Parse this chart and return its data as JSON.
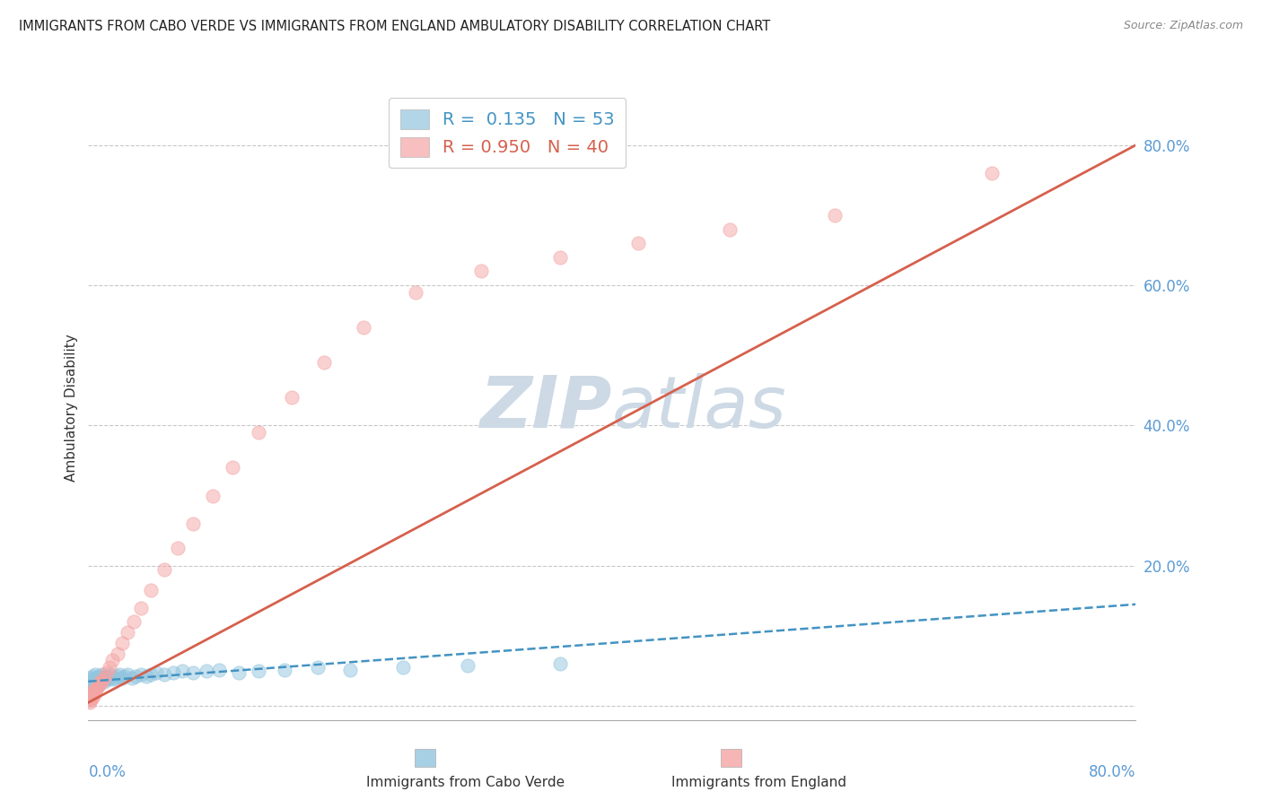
{
  "title": "IMMIGRANTS FROM CABO VERDE VS IMMIGRANTS FROM ENGLAND AMBULATORY DISABILITY CORRELATION CHART",
  "source": "Source: ZipAtlas.com",
  "ylabel": "Ambulatory Disability",
  "xlim": [
    0.0,
    0.8
  ],
  "ylim": [
    -0.02,
    0.87
  ],
  "yticks": [
    0.0,
    0.2,
    0.4,
    0.6,
    0.8
  ],
  "cabo_verde_R": 0.135,
  "cabo_verde_N": 53,
  "england_R": 0.95,
  "england_N": 40,
  "cabo_verde_color": "#92c5de",
  "england_color": "#f4a4a4",
  "cabo_verde_line_color": "#4393c3",
  "england_line_color": "#d6604d",
  "background_color": "#ffffff",
  "watermark_color": "#cdd9e5",
  "cabo_verde_scatter_x": [
    0.001,
    0.002,
    0.002,
    0.003,
    0.003,
    0.004,
    0.004,
    0.005,
    0.005,
    0.006,
    0.006,
    0.007,
    0.007,
    0.008,
    0.008,
    0.009,
    0.01,
    0.01,
    0.011,
    0.012,
    0.012,
    0.013,
    0.014,
    0.015,
    0.016,
    0.017,
    0.018,
    0.02,
    0.022,
    0.024,
    0.026,
    0.028,
    0.03,
    0.033,
    0.036,
    0.04,
    0.044,
    0.048,
    0.052,
    0.058,
    0.065,
    0.072,
    0.08,
    0.09,
    0.1,
    0.115,
    0.13,
    0.15,
    0.175,
    0.2,
    0.24,
    0.29,
    0.36
  ],
  "cabo_verde_scatter_y": [
    0.035,
    0.04,
    0.025,
    0.042,
    0.03,
    0.038,
    0.028,
    0.045,
    0.032,
    0.04,
    0.035,
    0.038,
    0.03,
    0.042,
    0.035,
    0.04,
    0.038,
    0.045,
    0.04,
    0.042,
    0.035,
    0.04,
    0.038,
    0.042,
    0.04,
    0.045,
    0.038,
    0.04,
    0.042,
    0.045,
    0.04,
    0.042,
    0.045,
    0.04,
    0.042,
    0.045,
    0.042,
    0.045,
    0.048,
    0.045,
    0.048,
    0.05,
    0.048,
    0.05,
    0.052,
    0.048,
    0.05,
    0.052,
    0.055,
    0.052,
    0.055,
    0.058,
    0.06
  ],
  "england_scatter_x": [
    0.001,
    0.001,
    0.002,
    0.002,
    0.003,
    0.003,
    0.004,
    0.004,
    0.005,
    0.006,
    0.007,
    0.008,
    0.009,
    0.01,
    0.012,
    0.014,
    0.016,
    0.018,
    0.022,
    0.026,
    0.03,
    0.035,
    0.04,
    0.048,
    0.058,
    0.068,
    0.08,
    0.095,
    0.11,
    0.13,
    0.155,
    0.18,
    0.21,
    0.25,
    0.3,
    0.36,
    0.42,
    0.49,
    0.57,
    0.69
  ],
  "england_scatter_y": [
    0.005,
    0.008,
    0.01,
    0.015,
    0.012,
    0.018,
    0.015,
    0.022,
    0.02,
    0.025,
    0.028,
    0.03,
    0.035,
    0.035,
    0.04,
    0.048,
    0.055,
    0.065,
    0.075,
    0.09,
    0.105,
    0.12,
    0.14,
    0.165,
    0.195,
    0.225,
    0.26,
    0.3,
    0.34,
    0.39,
    0.44,
    0.49,
    0.54,
    0.59,
    0.62,
    0.64,
    0.66,
    0.68,
    0.7,
    0.76
  ],
  "england_outlier_x": [
    0.49
  ],
  "england_outlier_y": [
    0.76
  ]
}
